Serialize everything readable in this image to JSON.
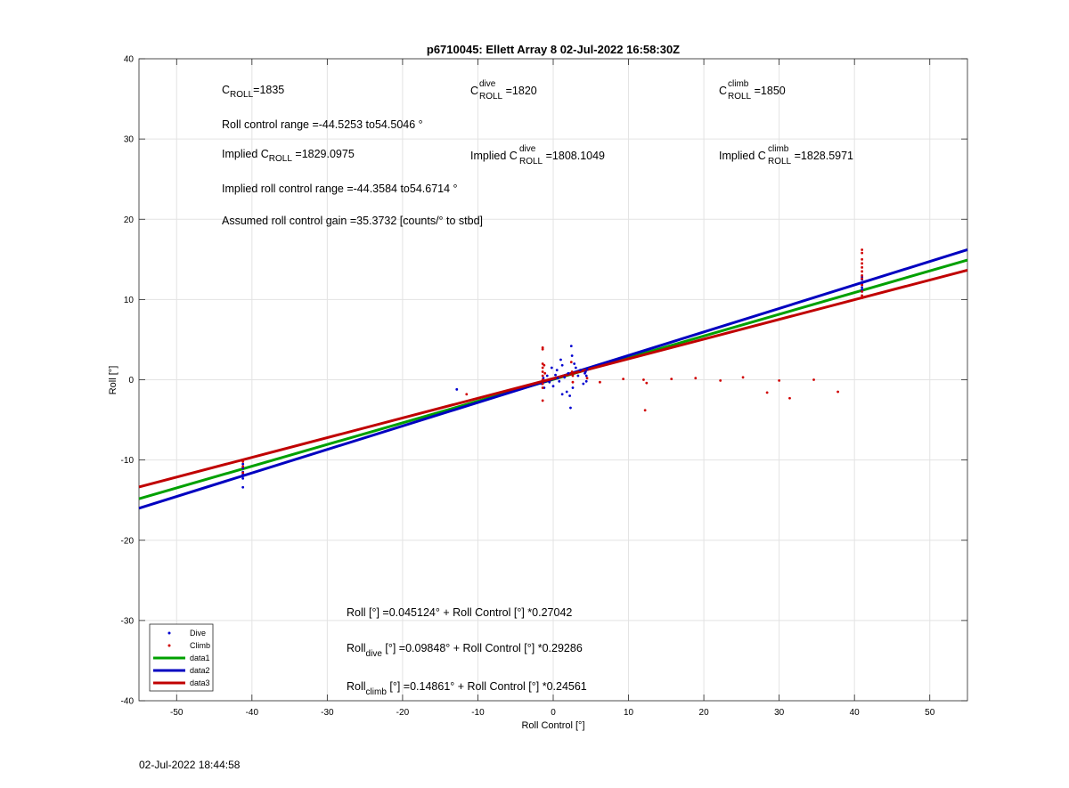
{
  "chart_data": {
    "type": "scatter",
    "title": "p6710045: Ellett Array 8 02-Jul-2022 16:58:30Z",
    "xlabel": "Roll Control [°]",
    "ylabel": "Roll [°]",
    "xlim": [
      -55,
      55
    ],
    "ylim": [
      -40,
      40
    ],
    "xticks": [
      -50,
      -40,
      -30,
      -20,
      -10,
      0,
      10,
      20,
      30,
      40,
      50
    ],
    "yticks": [
      -40,
      -30,
      -20,
      -10,
      0,
      10,
      20,
      30,
      40
    ],
    "grid": true,
    "legend_position": "bottom-left",
    "series": [
      {
        "name": "Dive",
        "kind": "points",
        "color": "#0000d0",
        "points": [
          [
            -41.2,
            -10.5
          ],
          [
            -41.2,
            -11.0
          ],
          [
            -41.2,
            -11.5
          ],
          [
            -41.2,
            -12.0
          ],
          [
            -41.2,
            -12.3
          ],
          [
            -41.2,
            -11.8
          ],
          [
            -41.2,
            -13.4
          ],
          [
            -12.8,
            -1.2
          ],
          [
            -1.5,
            -0.5
          ],
          [
            -1.3,
            0.2
          ],
          [
            -1.2,
            -1.0
          ],
          [
            -0.8,
            0.5
          ],
          [
            -0.5,
            -0.3
          ],
          [
            -0.2,
            1.5
          ],
          [
            0.0,
            -0.8
          ],
          [
            0.3,
            0.6
          ],
          [
            0.5,
            1.2
          ],
          [
            0.8,
            -0.2
          ],
          [
            1.0,
            2.5
          ],
          [
            1.2,
            1.8
          ],
          [
            1.5,
            0.3
          ],
          [
            1.8,
            -1.5
          ],
          [
            2.0,
            0.8
          ],
          [
            2.2,
            -2.0
          ],
          [
            2.3,
            -3.5
          ],
          [
            2.4,
            4.2
          ],
          [
            2.5,
            3.0
          ],
          [
            2.6,
            -1.0
          ],
          [
            2.8,
            2.0
          ],
          [
            3.0,
            1.5
          ],
          [
            3.3,
            0.5
          ],
          [
            3.6,
            1.2
          ],
          [
            4.0,
            -0.5
          ],
          [
            4.2,
            0.8
          ],
          [
            4.3,
            1.0
          ],
          [
            4.4,
            -0.2
          ],
          [
            4.4,
            0.5
          ],
          [
            4.5,
            1.3
          ],
          [
            1.2,
            -1.8
          ],
          [
            0.6,
            0.2
          ],
          [
            41.0,
            11.5
          ],
          [
            41.0,
            12.0
          ],
          [
            41.0,
            12.5
          ],
          [
            41.0,
            11.2
          ],
          [
            41.0,
            12.8
          ],
          [
            41.0,
            11.0
          ]
        ]
      },
      {
        "name": "Climb",
        "kind": "points",
        "color": "#d00000",
        "points": [
          [
            -41.2,
            -10.2
          ],
          [
            -41.2,
            -10.8
          ],
          [
            -41.2,
            -11.6
          ],
          [
            -11.5,
            -1.8
          ],
          [
            -1.4,
            4.0
          ],
          [
            -1.4,
            3.8
          ],
          [
            -1.4,
            2.0
          ],
          [
            -1.4,
            1.5
          ],
          [
            -1.4,
            1.0
          ],
          [
            -1.4,
            0.5
          ],
          [
            -1.4,
            0.0
          ],
          [
            -1.4,
            -0.5
          ],
          [
            -1.4,
            -1.0
          ],
          [
            -1.4,
            -2.6
          ],
          [
            -1.2,
            1.8
          ],
          [
            -1.1,
            0.8
          ],
          [
            2.4,
            2.2
          ],
          [
            2.5,
            1.0
          ],
          [
            2.6,
            0.5
          ],
          [
            2.6,
            -0.3
          ],
          [
            4.5,
            0.2
          ],
          [
            6.2,
            -0.3
          ],
          [
            9.3,
            0.1
          ],
          [
            12.0,
            0.0
          ],
          [
            12.2,
            -3.8
          ],
          [
            12.4,
            -0.4
          ],
          [
            15.7,
            0.1
          ],
          [
            18.9,
            0.2
          ],
          [
            22.2,
            -0.1
          ],
          [
            25.2,
            0.3
          ],
          [
            28.4,
            -1.6
          ],
          [
            30.0,
            -0.1
          ],
          [
            31.4,
            -2.3
          ],
          [
            34.6,
            0.0
          ],
          [
            37.8,
            -1.5
          ],
          [
            41.0,
            16.2
          ],
          [
            41.0,
            15.8
          ],
          [
            41.0,
            15.0
          ],
          [
            41.0,
            14.5
          ],
          [
            41.0,
            14.0
          ],
          [
            41.0,
            13.5
          ],
          [
            41.0,
            13.0
          ],
          [
            41.0,
            12.6
          ],
          [
            41.0,
            11.8
          ],
          [
            41.0,
            11.0
          ],
          [
            41.0,
            10.5
          ],
          [
            41.0,
            10.2
          ]
        ]
      },
      {
        "name": "data1",
        "kind": "line",
        "color": "#00a000",
        "intercept": 0.045124,
        "slope": 0.27042
      },
      {
        "name": "data2",
        "kind": "line",
        "color": "#0000c0",
        "intercept": 0.09848,
        "slope": 0.29286
      },
      {
        "name": "data3",
        "kind": "line",
        "color": "#c00000",
        "intercept": 0.14861,
        "slope": 0.24561
      }
    ],
    "annotations": {
      "c_roll": {
        "base": "C",
        "sub": "ROLL",
        "value": "=1835"
      },
      "c_roll_dive": {
        "base": "C",
        "sup": "dive",
        "sub": "ROLL",
        "value": " =1820"
      },
      "c_roll_climb": {
        "base": "C",
        "sup": "climb",
        "sub": "ROLL",
        "value": " =1850"
      },
      "roll_control_range": "Roll control range =-44.5253 to54.5046 °",
      "implied_c_roll": {
        "prefix": "Implied C",
        "sub": "ROLL",
        "value": " =1829.0975"
      },
      "implied_c_roll_dive": {
        "prefix": "Implied C",
        "sup": "dive",
        "sub": "ROLL",
        "value": " =1808.1049"
      },
      "implied_c_roll_climb": {
        "prefix": "Implied C",
        "sup": "climb",
        "sub": "ROLL",
        "value": " =1828.5971"
      },
      "implied_range": "Implied roll control range =-44.3584 to54.6714 °",
      "assumed_gain": "Assumed roll control gain =35.3732 [counts/° to stbd]",
      "fit_all": "Roll [°] =0.045124° + Roll Control [°] *0.27042",
      "fit_dive": {
        "base": "Roll",
        "sub": "dive",
        "rest": " [°] =0.09848° + Roll Control [°] *0.29286"
      },
      "fit_climb": {
        "base": "Roll",
        "sub": "climb",
        "rest": " [°] =0.14861° + Roll Control [°] *0.24561"
      }
    }
  },
  "footer_timestamp": "02-Jul-2022 18:44:58"
}
